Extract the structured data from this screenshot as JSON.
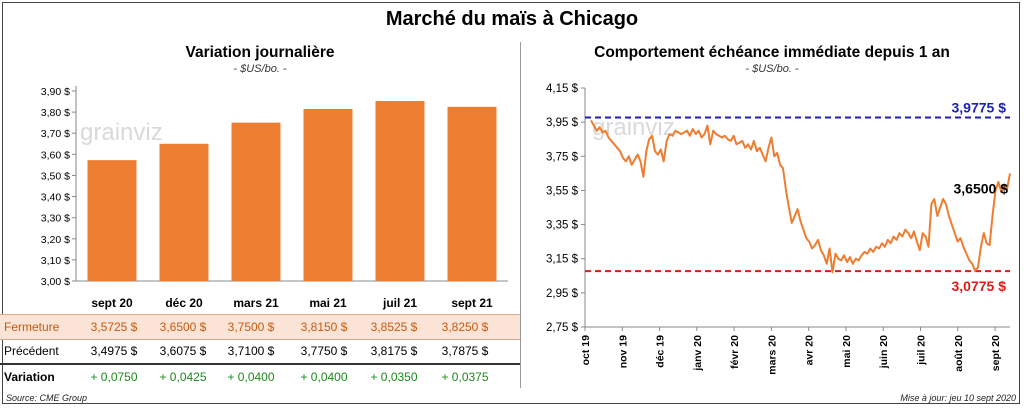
{
  "title": "Marché du maïs à Chicago",
  "left_panel": {
    "title": "Variation journalière",
    "unit": "- $US/bo. -",
    "watermark": "grainviz"
  },
  "right_panel": {
    "title": "Comportement échéance immédiate depuis 1 an",
    "unit": "- $US/bo. -",
    "watermark": "grainviz"
  },
  "table": {
    "fermeture_label": "Fermeture",
    "precedent_label": "Précédent",
    "variation_label": "Variation",
    "fermeture": [
      "3,5725 $",
      "3,6500 $",
      "3,7500 $",
      "3,8150 $",
      "3,8525 $",
      "3,8250 $"
    ],
    "precedent": [
      "3,4975 $",
      "3,6075 $",
      "3,7100 $",
      "3,7750 $",
      "3,8175 $",
      "3,7875 $"
    ],
    "variation": [
      "+ 0,0750",
      "+ 0,0425",
      "+ 0,0400",
      "+ 0,0400",
      "+ 0,0350",
      "+ 0,0375"
    ]
  },
  "footer": {
    "source": "Source: CME Group",
    "update": "Mise à jour: jeu 10 sept 2020"
  },
  "chart_data": [
    {
      "type": "bar",
      "categories": [
        "sept 20",
        "déc 20",
        "mars 21",
        "mai 21",
        "juil 21",
        "sept 21"
      ],
      "values": [
        3.5725,
        3.65,
        3.75,
        3.815,
        3.8525,
        3.825
      ],
      "ylim": [
        3.0,
        3.9
      ],
      "yticks": [
        "3,00 $",
        "3,10 $",
        "3,20 $",
        "3,30 $",
        "3,40 $",
        "3,50 $",
        "3,60 $",
        "3,70 $",
        "3,80 $",
        "3,90 $"
      ],
      "color": "#ed7d31"
    },
    {
      "type": "line",
      "ylim": [
        2.75,
        4.15
      ],
      "yticks": [
        "2,75 $",
        "2,95 $",
        "3,15 $",
        "3,35 $",
        "3,55 $",
        "3,75 $",
        "3,95 $",
        "4,15 $"
      ],
      "xticks": [
        "oct 19",
        "nov 19",
        "déc 19",
        "janv 20",
        "févr 20",
        "mars 20",
        "avr 20",
        "mai 20",
        "juin 20",
        "juil 20",
        "août 20",
        "sept 20"
      ],
      "color": "#ed7d31",
      "values": [
        3.96,
        3.93,
        3.9,
        3.92,
        3.89,
        3.9,
        3.86,
        3.84,
        3.82,
        3.8,
        3.78,
        3.74,
        3.72,
        3.75,
        3.7,
        3.73,
        3.76,
        3.72,
        3.63,
        3.78,
        3.85,
        3.87,
        3.78,
        3.76,
        3.79,
        3.72,
        3.84,
        3.88,
        3.87,
        3.9,
        3.89,
        3.88,
        3.89,
        3.9,
        3.87,
        3.91,
        3.88,
        3.9,
        3.86,
        3.88,
        3.93,
        3.82,
        3.9,
        3.88,
        3.87,
        3.86,
        3.87,
        3.85,
        3.84,
        3.87,
        3.82,
        3.83,
        3.84,
        3.8,
        3.82,
        3.79,
        3.84,
        3.78,
        3.8,
        3.76,
        3.72,
        3.8,
        3.86,
        3.75,
        3.77,
        3.7,
        3.68,
        3.55,
        3.45,
        3.36,
        3.4,
        3.44,
        3.37,
        3.32,
        3.27,
        3.25,
        3.21,
        3.23,
        3.26,
        3.2,
        3.17,
        3.12,
        3.21,
        3.07,
        3.18,
        3.15,
        3.14,
        3.17,
        3.13,
        3.16,
        3.12,
        3.15,
        3.14,
        3.17,
        3.19,
        3.18,
        3.21,
        3.19,
        3.22,
        3.21,
        3.24,
        3.22,
        3.26,
        3.24,
        3.28,
        3.26,
        3.3,
        3.28,
        3.32,
        3.3,
        3.27,
        3.31,
        3.25,
        3.2,
        3.3,
        3.28,
        3.22,
        3.47,
        3.5,
        3.4,
        3.45,
        3.5,
        3.47,
        3.4,
        3.35,
        3.3,
        3.25,
        3.27,
        3.22,
        3.18,
        3.14,
        3.12,
        3.08,
        3.1,
        3.22,
        3.3,
        3.24,
        3.23,
        3.4,
        3.55,
        3.6,
        3.54,
        3.58,
        3.56,
        3.65
      ],
      "ref_lines": [
        {
          "value": 3.9775,
          "label": "3,9775 $",
          "color": "#1f1fb4"
        },
        {
          "value": 3.0775,
          "label": "3,0775 $",
          "color": "#e11919"
        }
      ],
      "last_label": "3,6500 $"
    }
  ]
}
